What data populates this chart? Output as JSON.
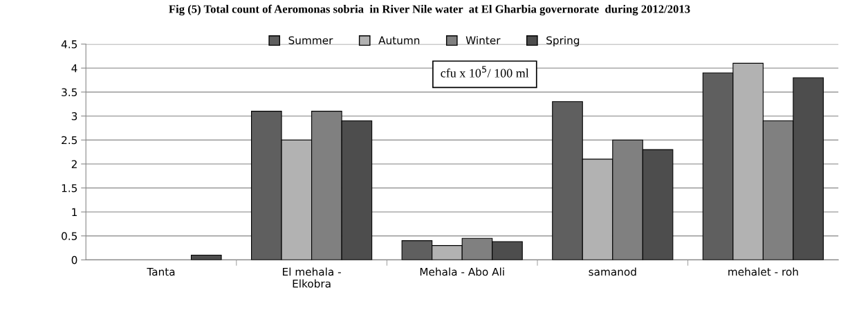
{
  "chart_data": {
    "type": "bar",
    "title": "Fig (5) Total count of Aeromonas sobria  in River Nile water  at El Gharbia governorate  during 2012/2013",
    "categories": [
      "Tanta",
      "El mehala -\nElkobra",
      "Mehala - Abo Ali",
      "samanod",
      "mehalet - roh"
    ],
    "series": [
      {
        "name": "Summer",
        "color": "#5f5f5f",
        "values": [
          null,
          3.1,
          0.4,
          3.3,
          3.9
        ]
      },
      {
        "name": "Autumn",
        "color": "#b2b2b2",
        "values": [
          null,
          2.5,
          0.3,
          2.1,
          4.1
        ]
      },
      {
        "name": "Winter",
        "color": "#808080",
        "values": [
          null,
          3.1,
          0.45,
          2.5,
          2.9
        ]
      },
      {
        "name": "Spring",
        "color": "#4d4d4d",
        "values": [
          0.1,
          2.9,
          0.38,
          2.3,
          3.8
        ]
      }
    ],
    "ylim": [
      0,
      4.5
    ],
    "yticks": [
      0,
      0.5,
      1,
      1.5,
      2,
      2.5,
      3,
      3.5,
      4,
      4.5
    ],
    "grid": "y",
    "legend": "top",
    "annotations": [
      "cfu x 10$^{5}$/ 100 ml"
    ]
  }
}
